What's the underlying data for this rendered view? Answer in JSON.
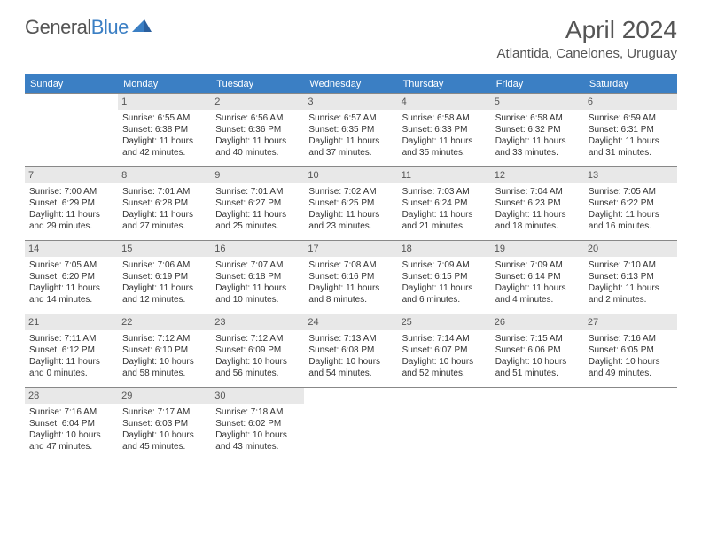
{
  "logo": {
    "text1": "General",
    "text2": "Blue"
  },
  "title": "April 2024",
  "location": "Atlantida, Canelones, Uruguay",
  "dayHeaders": [
    "Sunday",
    "Monday",
    "Tuesday",
    "Wednesday",
    "Thursday",
    "Friday",
    "Saturday"
  ],
  "colors": {
    "accent": "#3b7fc4",
    "headerText": "#ffffff",
    "dayNumBg": "#e8e8e8",
    "border": "#888888",
    "text": "#333333",
    "titleText": "#555555"
  },
  "weeks": [
    [
      null,
      {
        "n": "1",
        "sr": "Sunrise: 6:55 AM",
        "ss": "Sunset: 6:38 PM",
        "d1": "Daylight: 11 hours",
        "d2": "and 42 minutes."
      },
      {
        "n": "2",
        "sr": "Sunrise: 6:56 AM",
        "ss": "Sunset: 6:36 PM",
        "d1": "Daylight: 11 hours",
        "d2": "and 40 minutes."
      },
      {
        "n": "3",
        "sr": "Sunrise: 6:57 AM",
        "ss": "Sunset: 6:35 PM",
        "d1": "Daylight: 11 hours",
        "d2": "and 37 minutes."
      },
      {
        "n": "4",
        "sr": "Sunrise: 6:58 AM",
        "ss": "Sunset: 6:33 PM",
        "d1": "Daylight: 11 hours",
        "d2": "and 35 minutes."
      },
      {
        "n": "5",
        "sr": "Sunrise: 6:58 AM",
        "ss": "Sunset: 6:32 PM",
        "d1": "Daylight: 11 hours",
        "d2": "and 33 minutes."
      },
      {
        "n": "6",
        "sr": "Sunrise: 6:59 AM",
        "ss": "Sunset: 6:31 PM",
        "d1": "Daylight: 11 hours",
        "d2": "and 31 minutes."
      }
    ],
    [
      {
        "n": "7",
        "sr": "Sunrise: 7:00 AM",
        "ss": "Sunset: 6:29 PM",
        "d1": "Daylight: 11 hours",
        "d2": "and 29 minutes."
      },
      {
        "n": "8",
        "sr": "Sunrise: 7:01 AM",
        "ss": "Sunset: 6:28 PM",
        "d1": "Daylight: 11 hours",
        "d2": "and 27 minutes."
      },
      {
        "n": "9",
        "sr": "Sunrise: 7:01 AM",
        "ss": "Sunset: 6:27 PM",
        "d1": "Daylight: 11 hours",
        "d2": "and 25 minutes."
      },
      {
        "n": "10",
        "sr": "Sunrise: 7:02 AM",
        "ss": "Sunset: 6:25 PM",
        "d1": "Daylight: 11 hours",
        "d2": "and 23 minutes."
      },
      {
        "n": "11",
        "sr": "Sunrise: 7:03 AM",
        "ss": "Sunset: 6:24 PM",
        "d1": "Daylight: 11 hours",
        "d2": "and 21 minutes."
      },
      {
        "n": "12",
        "sr": "Sunrise: 7:04 AM",
        "ss": "Sunset: 6:23 PM",
        "d1": "Daylight: 11 hours",
        "d2": "and 18 minutes."
      },
      {
        "n": "13",
        "sr": "Sunrise: 7:05 AM",
        "ss": "Sunset: 6:22 PM",
        "d1": "Daylight: 11 hours",
        "d2": "and 16 minutes."
      }
    ],
    [
      {
        "n": "14",
        "sr": "Sunrise: 7:05 AM",
        "ss": "Sunset: 6:20 PM",
        "d1": "Daylight: 11 hours",
        "d2": "and 14 minutes."
      },
      {
        "n": "15",
        "sr": "Sunrise: 7:06 AM",
        "ss": "Sunset: 6:19 PM",
        "d1": "Daylight: 11 hours",
        "d2": "and 12 minutes."
      },
      {
        "n": "16",
        "sr": "Sunrise: 7:07 AM",
        "ss": "Sunset: 6:18 PM",
        "d1": "Daylight: 11 hours",
        "d2": "and 10 minutes."
      },
      {
        "n": "17",
        "sr": "Sunrise: 7:08 AM",
        "ss": "Sunset: 6:16 PM",
        "d1": "Daylight: 11 hours",
        "d2": "and 8 minutes."
      },
      {
        "n": "18",
        "sr": "Sunrise: 7:09 AM",
        "ss": "Sunset: 6:15 PM",
        "d1": "Daylight: 11 hours",
        "d2": "and 6 minutes."
      },
      {
        "n": "19",
        "sr": "Sunrise: 7:09 AM",
        "ss": "Sunset: 6:14 PM",
        "d1": "Daylight: 11 hours",
        "d2": "and 4 minutes."
      },
      {
        "n": "20",
        "sr": "Sunrise: 7:10 AM",
        "ss": "Sunset: 6:13 PM",
        "d1": "Daylight: 11 hours",
        "d2": "and 2 minutes."
      }
    ],
    [
      {
        "n": "21",
        "sr": "Sunrise: 7:11 AM",
        "ss": "Sunset: 6:12 PM",
        "d1": "Daylight: 11 hours",
        "d2": "and 0 minutes."
      },
      {
        "n": "22",
        "sr": "Sunrise: 7:12 AM",
        "ss": "Sunset: 6:10 PM",
        "d1": "Daylight: 10 hours",
        "d2": "and 58 minutes."
      },
      {
        "n": "23",
        "sr": "Sunrise: 7:12 AM",
        "ss": "Sunset: 6:09 PM",
        "d1": "Daylight: 10 hours",
        "d2": "and 56 minutes."
      },
      {
        "n": "24",
        "sr": "Sunrise: 7:13 AM",
        "ss": "Sunset: 6:08 PM",
        "d1": "Daylight: 10 hours",
        "d2": "and 54 minutes."
      },
      {
        "n": "25",
        "sr": "Sunrise: 7:14 AM",
        "ss": "Sunset: 6:07 PM",
        "d1": "Daylight: 10 hours",
        "d2": "and 52 minutes."
      },
      {
        "n": "26",
        "sr": "Sunrise: 7:15 AM",
        "ss": "Sunset: 6:06 PM",
        "d1": "Daylight: 10 hours",
        "d2": "and 51 minutes."
      },
      {
        "n": "27",
        "sr": "Sunrise: 7:16 AM",
        "ss": "Sunset: 6:05 PM",
        "d1": "Daylight: 10 hours",
        "d2": "and 49 minutes."
      }
    ],
    [
      {
        "n": "28",
        "sr": "Sunrise: 7:16 AM",
        "ss": "Sunset: 6:04 PM",
        "d1": "Daylight: 10 hours",
        "d2": "and 47 minutes."
      },
      {
        "n": "29",
        "sr": "Sunrise: 7:17 AM",
        "ss": "Sunset: 6:03 PM",
        "d1": "Daylight: 10 hours",
        "d2": "and 45 minutes."
      },
      {
        "n": "30",
        "sr": "Sunrise: 7:18 AM",
        "ss": "Sunset: 6:02 PM",
        "d1": "Daylight: 10 hours",
        "d2": "and 43 minutes."
      },
      null,
      null,
      null,
      null
    ]
  ]
}
